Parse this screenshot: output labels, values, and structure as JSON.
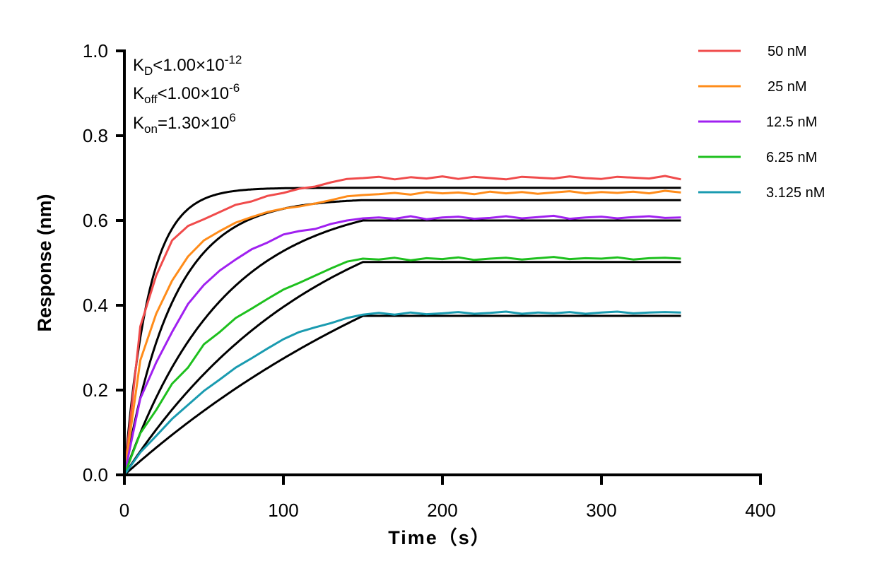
{
  "chart_data": {
    "type": "line",
    "title": "",
    "xlabel": "Time（s）",
    "ylabel": "Response (nm)",
    "xlim": [
      0,
      400
    ],
    "ylim": [
      0,
      1.0
    ],
    "xticks": [
      "0",
      "100",
      "200",
      "300",
      "400"
    ],
    "yticks": [
      "0.0",
      "0.2",
      "0.4",
      "0.6",
      "0.8",
      "1.0"
    ],
    "grid": false,
    "legend_position": "top-right",
    "annotations": {
      "kd": {
        "label": "K",
        "sub": "D",
        "rel": "<1.00×10",
        "exp": "-12"
      },
      "koff": {
        "label": "K",
        "sub": "off",
        "rel": "<1.00×10",
        "exp": "-6"
      },
      "kon": {
        "label": "K",
        "sub": "on",
        "rel": "=1.30×10",
        "exp": "6"
      }
    },
    "association_end": 150,
    "x": [
      0,
      10,
      20,
      30,
      40,
      50,
      60,
      70,
      80,
      90,
      100,
      110,
      120,
      130,
      140,
      150,
      160,
      170,
      180,
      190,
      200,
      210,
      220,
      230,
      240,
      250,
      260,
      270,
      280,
      290,
      300,
      310,
      320,
      330,
      340,
      350
    ],
    "series": [
      {
        "name": "50 nM",
        "color": "#f04b4b",
        "fit_kobs": 0.065,
        "fit_plateau": 0.677,
        "values": [
          0,
          0.35,
          0.47,
          0.553,
          0.587,
          0.603,
          0.62,
          0.637,
          0.645,
          0.658,
          0.665,
          0.675,
          0.68,
          0.69,
          0.698,
          0.7,
          0.703,
          0.697,
          0.702,
          0.699,
          0.704,
          0.698,
          0.703,
          0.7,
          0.697,
          0.703,
          0.701,
          0.699,
          0.704,
          0.7,
          0.698,
          0.703,
          0.701,
          0.699,
          0.705,
          0.697
        ]
      },
      {
        "name": "25 nM",
        "color": "#ff8c1a",
        "fit_kobs": 0.0325,
        "fit_plateau": 0.648,
        "values": [
          0,
          0.27,
          0.38,
          0.458,
          0.515,
          0.553,
          0.575,
          0.595,
          0.608,
          0.62,
          0.628,
          0.633,
          0.64,
          0.648,
          0.657,
          0.66,
          0.662,
          0.665,
          0.661,
          0.667,
          0.664,
          0.666,
          0.662,
          0.668,
          0.664,
          0.667,
          0.663,
          0.666,
          0.669,
          0.664,
          0.667,
          0.665,
          0.668,
          0.664,
          0.67,
          0.666
        ]
      },
      {
        "name": "12.5 nM",
        "color": "#a020f0",
        "fit_kobs": 0.01625,
        "fit_plateau": 0.6,
        "values": [
          0,
          0.18,
          0.265,
          0.337,
          0.403,
          0.448,
          0.482,
          0.508,
          0.532,
          0.548,
          0.567,
          0.575,
          0.58,
          0.592,
          0.6,
          0.605,
          0.607,
          0.604,
          0.61,
          0.603,
          0.607,
          0.609,
          0.604,
          0.606,
          0.61,
          0.605,
          0.608,
          0.611,
          0.604,
          0.607,
          0.609,
          0.605,
          0.608,
          0.61,
          0.606,
          0.607
        ]
      },
      {
        "name": "6.25 nM",
        "color": "#1ec01e",
        "fit_kobs": 0.0081,
        "fit_plateau": 0.502,
        "values": [
          0,
          0.098,
          0.153,
          0.215,
          0.253,
          0.308,
          0.337,
          0.37,
          0.392,
          0.415,
          0.437,
          0.453,
          0.47,
          0.487,
          0.503,
          0.51,
          0.508,
          0.512,
          0.506,
          0.511,
          0.509,
          0.513,
          0.507,
          0.51,
          0.512,
          0.508,
          0.511,
          0.514,
          0.509,
          0.511,
          0.51,
          0.513,
          0.508,
          0.511,
          0.512,
          0.51
        ]
      },
      {
        "name": "3.125 nM",
        "color": "#1a9bb0",
        "fit_kobs": 0.0041,
        "fit_plateau": 0.375,
        "values": [
          0,
          0.053,
          0.092,
          0.132,
          0.165,
          0.198,
          0.225,
          0.253,
          0.275,
          0.298,
          0.32,
          0.337,
          0.348,
          0.358,
          0.37,
          0.378,
          0.382,
          0.378,
          0.383,
          0.379,
          0.381,
          0.384,
          0.38,
          0.382,
          0.385,
          0.38,
          0.383,
          0.381,
          0.384,
          0.38,
          0.383,
          0.385,
          0.381,
          0.383,
          0.384,
          0.383
        ]
      }
    ]
  }
}
